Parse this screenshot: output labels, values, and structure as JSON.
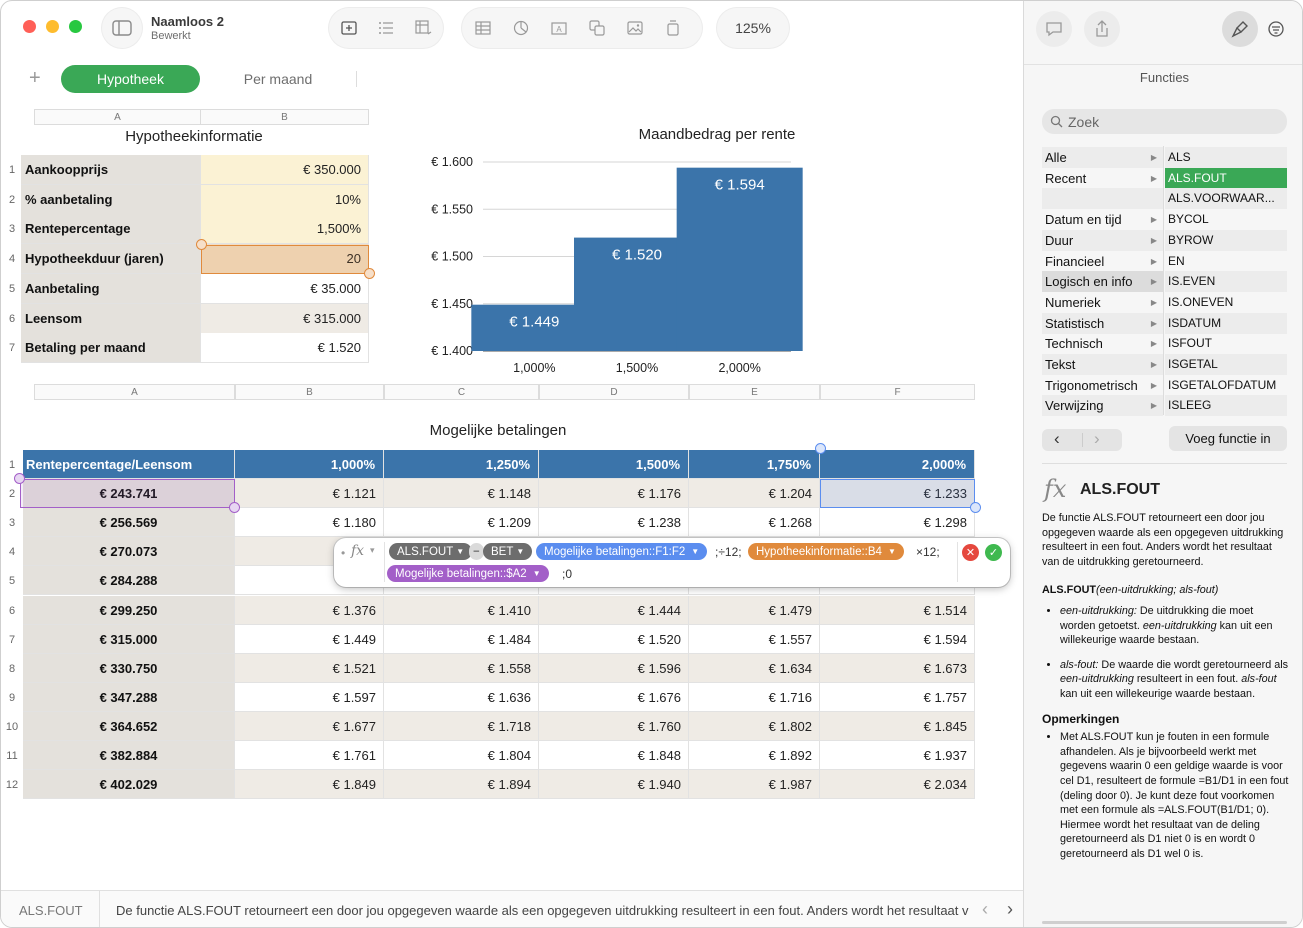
{
  "window": {
    "doc_title": "Naamloos 2",
    "doc_subtitle": "Bewerkt",
    "zoom": "125%"
  },
  "sheets": [
    {
      "label": "Hypotheek",
      "active": true
    },
    {
      "label": "Per maand",
      "active": false
    }
  ],
  "table1": {
    "title": "Hypotheekinformatie",
    "col_headers": [
      "A",
      "B"
    ],
    "rows": [
      {
        "num": "1",
        "label": "Aankoopprijs",
        "value": "€ 350.000"
      },
      {
        "num": "2",
        "label": "% aanbetaling",
        "value": "10%"
      },
      {
        "num": "3",
        "label": "Rentepercentage",
        "value": "1,500%"
      },
      {
        "num": "4",
        "label": "Hypotheekduur (jaren)",
        "value": "20"
      },
      {
        "num": "5",
        "label": "Aanbetaling",
        "value": "€ 35.000"
      },
      {
        "num": "6",
        "label": "Leensom",
        "value": "€ 315.000"
      },
      {
        "num": "7",
        "label": "Betaling per maand",
        "value": "€ 1.520"
      }
    ]
  },
  "chart_data": {
    "type": "bar",
    "title": "Maandbedrag per rente",
    "categories": [
      "1,000%",
      "1,500%",
      "2,000%"
    ],
    "values": [
      1449,
      1520,
      1594
    ],
    "data_labels": [
      "€ 1.449",
      "€ 1.520",
      "€ 1.594"
    ],
    "ylim": [
      1400,
      1600
    ],
    "yticks": [
      "€ 1.400",
      "€ 1.450",
      "€ 1.500",
      "€ 1.550",
      "€ 1.600"
    ],
    "grid": true,
    "bar_color": "#3b74aa"
  },
  "table2": {
    "title": "Mogelijke betalingen",
    "col_headers": [
      "A",
      "B",
      "C",
      "D",
      "E",
      "F"
    ],
    "header_row": [
      "Rentepercentage/Leensom",
      "1,000%",
      "1,250%",
      "1,500%",
      "1,750%",
      "2,000%"
    ],
    "rows": [
      {
        "num": "1"
      },
      {
        "num": "2",
        "a": "€ 243.741",
        "v": [
          "€ 1.121",
          "€ 1.148",
          "€ 1.176",
          "€ 1.204",
          "€ 1.233"
        ]
      },
      {
        "num": "3",
        "a": "€ 256.569",
        "v": [
          "€ 1.180",
          "€ 1.209",
          "€ 1.238",
          "€ 1.268",
          "€ 1.298"
        ]
      },
      {
        "num": "4",
        "a": "€ 270.073",
        "v": [
          "",
          "",
          "",
          "",
          ""
        ]
      },
      {
        "num": "5",
        "a": "€ 284.288",
        "v": [
          "",
          "",
          "",
          "",
          ""
        ]
      },
      {
        "num": "6",
        "a": "€ 299.250",
        "v": [
          "€ 1.376",
          "€ 1.410",
          "€ 1.444",
          "€ 1.479",
          "€ 1.514"
        ]
      },
      {
        "num": "7",
        "a": "€ 315.000",
        "v": [
          "€ 1.449",
          "€ 1.484",
          "€ 1.520",
          "€ 1.557",
          "€ 1.594"
        ]
      },
      {
        "num": "8",
        "a": "€ 330.750",
        "v": [
          "€ 1.521",
          "€ 1.558",
          "€ 1.596",
          "€ 1.634",
          "€ 1.673"
        ]
      },
      {
        "num": "9",
        "a": "€ 347.288",
        "v": [
          "€ 1.597",
          "€ 1.636",
          "€ 1.676",
          "€ 1.716",
          "€ 1.757"
        ]
      },
      {
        "num": "10",
        "a": "€ 364.652",
        "v": [
          "€ 1.677",
          "€ 1.718",
          "€ 1.760",
          "€ 1.802",
          "€ 1.845"
        ]
      },
      {
        "num": "11",
        "a": "€ 382.884",
        "v": [
          "€ 1.761",
          "€ 1.804",
          "€ 1.848",
          "€ 1.892",
          "€ 1.937"
        ]
      },
      {
        "num": "12",
        "a": "€ 402.029",
        "v": [
          "€ 1.849",
          "€ 1.894",
          "€ 1.940",
          "€ 1.987",
          "€ 2.034"
        ]
      }
    ]
  },
  "formula": {
    "fx_label": "fx",
    "tok_alsfout": "ALS.FOUT",
    "minus": "−",
    "tok_bet": "BET",
    "tok_ref1": "Mogelijke betalingen::F1:F2",
    "sep1": ";÷12;",
    "tok_ref2": "Hypotheekinformatie::B4",
    "sep2": "×12;",
    "tok_ref3": "Mogelijke betalingen::$A2",
    "tail": ";0",
    "colors": {
      "func": "#6d6d6d",
      "ref_blue": "#5b8def",
      "ref_orange": "#e08a3c",
      "ref_purple": "#a35fc8",
      "cancel": "#e5483e",
      "accept": "#3fb94f"
    }
  },
  "sidebar": {
    "header": "Functies",
    "search_placeholder": "Zoek",
    "categories": [
      "Alle",
      "Recent",
      "",
      "Datum en tijd",
      "Duur",
      "Financieel",
      "Logisch en info",
      "Numeriek",
      "Statistisch",
      "Technisch",
      "Tekst",
      "Trigonometrisch",
      "Verwijzing"
    ],
    "functions": [
      "ALS",
      "ALS.FOUT",
      "ALS.VOORWAAR...",
      "BYCOL",
      "BYROW",
      "EN",
      "IS.EVEN",
      "IS.ONEVEN",
      "ISDATUM",
      "ISFOUT",
      "ISGETAL",
      "ISGETALOFDATUM",
      "ISLEEG"
    ],
    "selected_function": "ALS.FOUT",
    "insert_button": "Voeg functie in",
    "help": {
      "fx": "fx",
      "name": "ALS.FOUT",
      "intro": "De functie ALS.FOUT retourneert een door jou opgegeven waarde als een opgegeven uitdrukking resulteert in een fout. Anders wordt het resultaat van de uitdrukking geretourneerd.",
      "syntax_name": "ALS.FOUT",
      "syntax_args": "(een-uitdrukking; als-fout)",
      "arg1_name": "een-uitdrukking:",
      "arg1_text": " De uitdrukking die moet worden getoetst. ",
      "arg1_name2": "een-uitdrukking",
      "arg1_text2": " kan uit een willekeurige waarde bestaan.",
      "arg2_name": "als-fout:",
      "arg2_text": " De waarde die wordt geretourneerd als ",
      "arg2_name2": "een-uitdrukking",
      "arg2_text2": " resulteert in een fout. ",
      "arg2_name3": "als-fout",
      "arg2_text3": " kan uit een willekeurige waarde bestaan.",
      "remarks_title": "Opmerkingen",
      "remark": "Met ALS.FOUT kun je fouten in een formule afhandelen. Als je bijvoorbeeld werkt met gegevens waarin 0 een geldige waarde is voor cel D1, resulteert de formule =B1/D1 in een fout (deling door 0). Je kunt deze fout voorkomen met een formule als =ALS.FOUT(B1/D1; 0). Hiermee wordt het resultaat van de deling geretourneerd als D1 niet 0 is en wordt 0 geretourneerd als D1 wel 0 is."
    }
  },
  "bottombar": {
    "function_name": "ALS.FOUT",
    "description": "De functie ALS.FOUT retourneert een door jou opgegeven waarde als een opgegeven uitdrukking resulteert in een fout. Anders wordt het resultaat v"
  }
}
